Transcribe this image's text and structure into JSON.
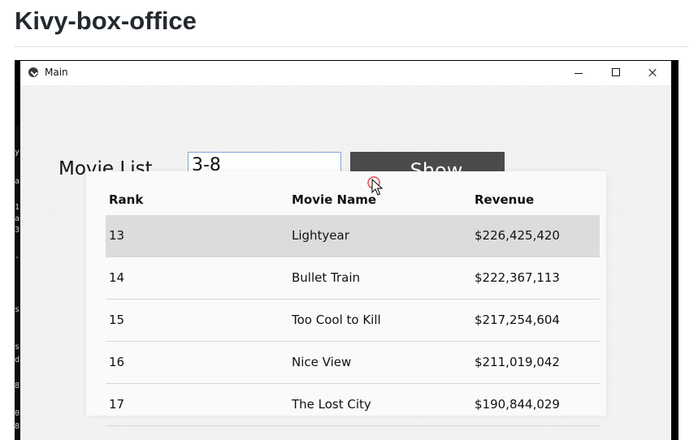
{
  "page": {
    "heading": "Kivy-box-office"
  },
  "window": {
    "title": "Main",
    "controls": {
      "minimize": "minimize",
      "maximize": "maximize",
      "close": "close"
    }
  },
  "form": {
    "label": "Movie List",
    "range_value": "3-8",
    "button_label": "Show"
  },
  "table": {
    "headers": [
      "Rank",
      "Movie Name",
      "Revenue"
    ],
    "rows": [
      {
        "rank": "13",
        "name": "Lightyear",
        "revenue": "$226,425,420"
      },
      {
        "rank": "14",
        "name": "Bullet Train",
        "revenue": "$222,367,113"
      },
      {
        "rank": "15",
        "name": "Too Cool to Kill",
        "revenue": "$217,254,604"
      },
      {
        "rank": "16",
        "name": "Nice View",
        "revenue": "$211,019,042"
      },
      {
        "rank": "17",
        "name": "The Lost City",
        "revenue": "$190,844,029"
      }
    ],
    "selected_row": 0
  },
  "terminal": {
    "fragments": [
      "y",
      "a",
      "1",
      "a",
      "3",
      "-(",
      "s",
      "s",
      "d",
      "8",
      "0",
      "8"
    ]
  },
  "icons": {
    "app": "kivy-app-icon",
    "cursor": "mouse-cursor-icon"
  },
  "colors": {
    "button": "#4b4b4b",
    "selected_row": "#dcdcdc",
    "input_border": "#7aa7d4"
  }
}
